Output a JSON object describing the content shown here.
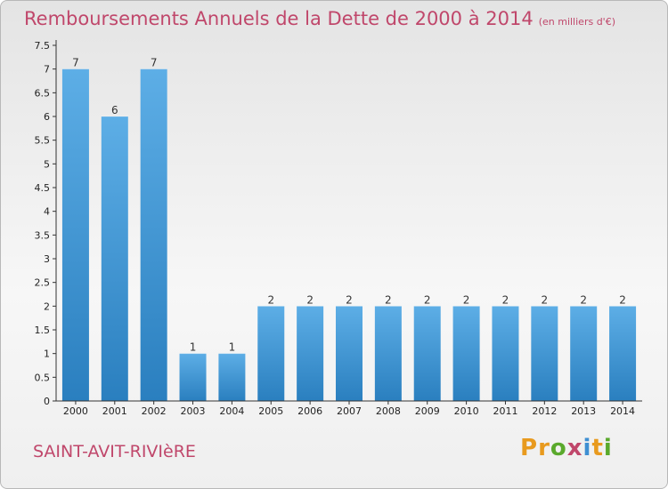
{
  "colors": {
    "title": "#c0476b",
    "bar_light": "#5daee6",
    "bar_dark": "#2a7fbf",
    "axis": "#333333"
  },
  "chart_data": {
    "type": "bar",
    "title": "Remboursements Annuels de la Dette de 2000 à 2014",
    "unit_note": "(en milliers d'€)",
    "categories": [
      "2000",
      "2001",
      "2002",
      "2003",
      "2004",
      "2005",
      "2006",
      "2007",
      "2008",
      "2009",
      "2010",
      "2011",
      "2012",
      "2013",
      "2014"
    ],
    "values": [
      7,
      6,
      7,
      1,
      1,
      2,
      2,
      2,
      2,
      2,
      2,
      2,
      2,
      2,
      2
    ],
    "value_labels": [
      "7",
      "6",
      "7",
      "1",
      "1",
      "2",
      "2",
      "2",
      "2",
      "2",
      "2",
      "2",
      "2",
      "2",
      "2"
    ],
    "yticks": [
      "0",
      "0.5",
      "1",
      "1.5",
      "2",
      "2.5",
      "3",
      "3.5",
      "4",
      "4.5",
      "5",
      "5.5",
      "6",
      "6.5",
      "7",
      "7.5"
    ],
    "ylim": [
      0,
      7.5
    ],
    "xlabel": "",
    "ylabel": "",
    "grid": false
  },
  "commune": "SAINT-AVIT-RIVIèRE",
  "logo": {
    "text": "Proxiti",
    "letters": [
      {
        "ch": "P",
        "color": "#e89a1e"
      },
      {
        "ch": "r",
        "color": "#e89a1e"
      },
      {
        "ch": "o",
        "color": "#5aa92c"
      },
      {
        "ch": "x",
        "color": "#c0476b"
      },
      {
        "ch": "i",
        "color": "#3f8fd2"
      },
      {
        "ch": "t",
        "color": "#e89a1e"
      },
      {
        "ch": "i",
        "color": "#5aa92c"
      }
    ]
  }
}
